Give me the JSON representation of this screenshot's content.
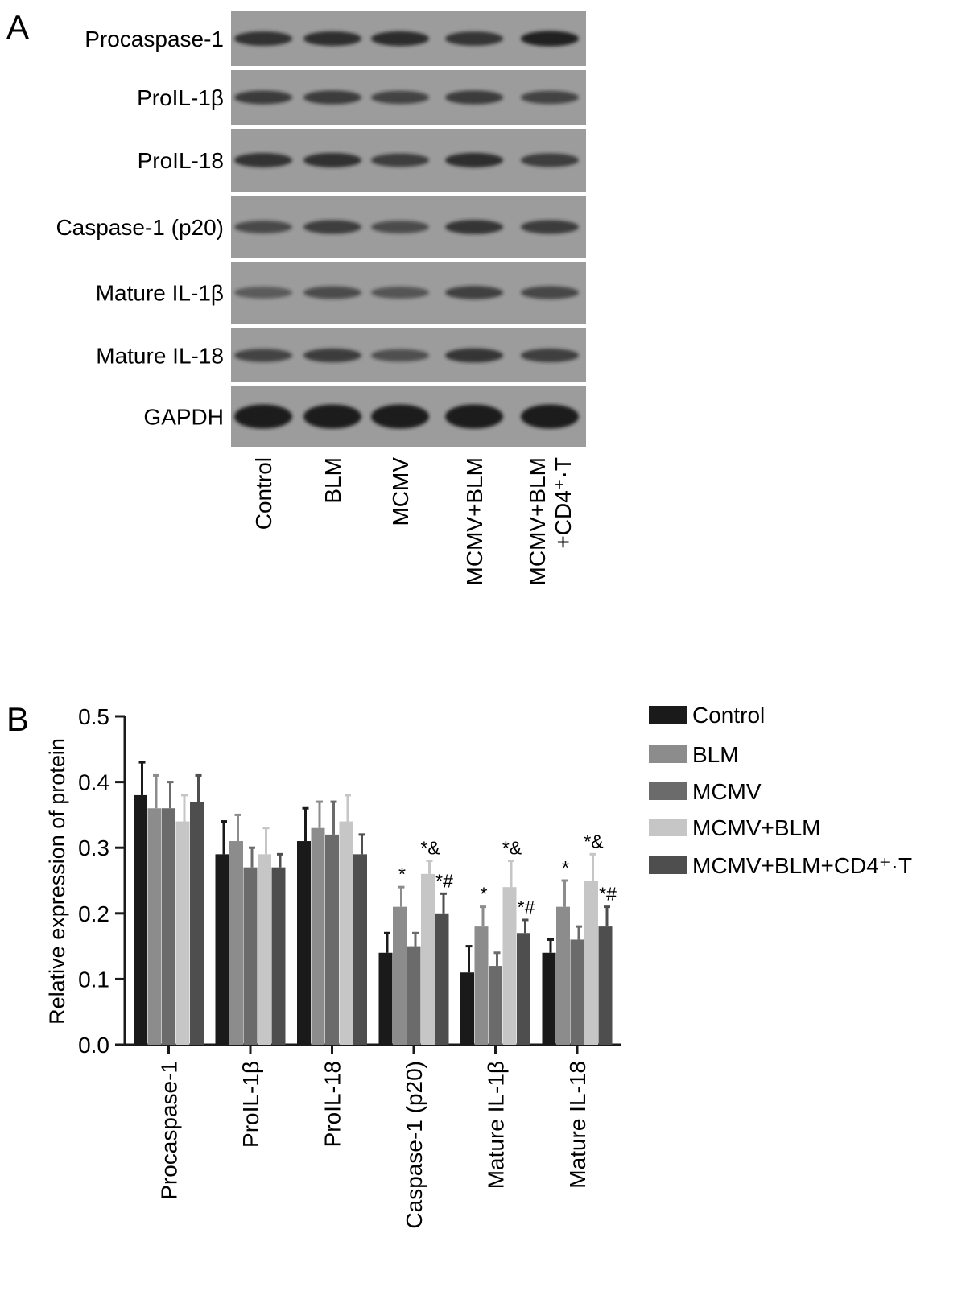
{
  "panel_a": {
    "label": "A",
    "rows": [
      "Procaspase-1",
      "ProIL-1β",
      "ProIL-18",
      "Caspase-1 (p20)",
      "Mature IL-1β",
      "Mature IL-18",
      "GAPDH"
    ],
    "lanes": [
      {
        "lines": [
          "Control"
        ]
      },
      {
        "lines": [
          "BLM"
        ]
      },
      {
        "lines": [
          "MCMV"
        ]
      },
      {
        "lines": [
          "MCMV+BLM"
        ]
      },
      {
        "lines": [
          "MCMV+BLM",
          "+CD4⁺·T"
        ]
      }
    ],
    "band_intensity": [
      [
        0.75,
        0.78,
        0.8,
        0.72,
        0.9
      ],
      [
        0.62,
        0.66,
        0.55,
        0.66,
        0.55
      ],
      [
        0.74,
        0.76,
        0.6,
        0.78,
        0.65
      ],
      [
        0.5,
        0.65,
        0.48,
        0.72,
        0.66
      ],
      [
        0.35,
        0.48,
        0.4,
        0.58,
        0.52
      ],
      [
        0.55,
        0.66,
        0.45,
        0.72,
        0.64
      ],
      [
        0.98,
        0.98,
        0.98,
        0.98,
        0.95
      ]
    ],
    "colors": {
      "blot_bg": "#9c9c9c",
      "band": "#1e1e1e"
    }
  },
  "chart_data": {
    "type": "bar",
    "panel_label": "B",
    "ylabel": "Relative expression of protein",
    "ylim": [
      0.0,
      0.5
    ],
    "yticks": [
      "0.0",
      "0.1",
      "0.2",
      "0.3",
      "0.4",
      "0.5"
    ],
    "categories": [
      "Procaspase-1",
      "ProIL-1β",
      "ProIL-18",
      "Caspase-1 (p20)",
      "Mature IL-1β",
      "Mature IL-18"
    ],
    "legend_position": "right",
    "grid": false,
    "series": [
      {
        "name": "Control",
        "color": "#1a1a1a",
        "values": [
          0.38,
          0.29,
          0.31,
          0.14,
          0.11,
          0.14
        ],
        "errors": [
          0.05,
          0.05,
          0.05,
          0.03,
          0.04,
          0.02
        ],
        "annotations": [
          "",
          "",
          "",
          "",
          "",
          ""
        ]
      },
      {
        "name": "BLM",
        "color": "#8c8c8c",
        "values": [
          0.36,
          0.31,
          0.33,
          0.21,
          0.18,
          0.21
        ],
        "errors": [
          0.05,
          0.04,
          0.04,
          0.03,
          0.03,
          0.04
        ],
        "annotations": [
          "",
          "",
          "",
          "*",
          "*",
          "*"
        ]
      },
      {
        "name": "MCMV",
        "color": "#6b6b6b",
        "values": [
          0.36,
          0.27,
          0.32,
          0.15,
          0.12,
          0.16
        ],
        "errors": [
          0.04,
          0.03,
          0.05,
          0.02,
          0.02,
          0.02
        ],
        "annotations": [
          "",
          "",
          "",
          "",
          "",
          ""
        ]
      },
      {
        "name": "MCMV+BLM",
        "color": "#c6c6c6",
        "values": [
          0.34,
          0.29,
          0.34,
          0.26,
          0.24,
          0.25
        ],
        "errors": [
          0.04,
          0.04,
          0.04,
          0.02,
          0.04,
          0.04
        ],
        "annotations": [
          "",
          "",
          "",
          "*&",
          "*&",
          "*&"
        ]
      },
      {
        "name": "MCMV+BLM+CD4⁺·T",
        "color": "#4e4e4e",
        "values": [
          0.37,
          0.27,
          0.29,
          0.2,
          0.17,
          0.18
        ],
        "errors": [
          0.04,
          0.02,
          0.03,
          0.03,
          0.02,
          0.03
        ],
        "annotations": [
          "",
          "",
          "",
          "*#",
          "*#",
          "*#"
        ]
      }
    ]
  }
}
